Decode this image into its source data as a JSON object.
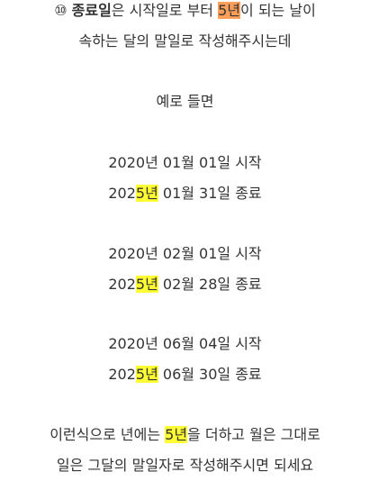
{
  "intro": {
    "marker": "⑩",
    "term": "종료일",
    "text1": "은 시작일로 부터 ",
    "highlight": "5년",
    "text2": "이 되는 날이",
    "line2": "속하는 달의 말일로 작성해주시는데"
  },
  "example_heading": "예로 들면",
  "examples": [
    {
      "start": "2020년 01월 01일 시작",
      "end_prefix": "202",
      "end_highlight": "5년",
      "end_suffix": " 01월 31일 종료"
    },
    {
      "start": "2020년 02월 01일 시작",
      "end_prefix": "202",
      "end_highlight": "5년",
      "end_suffix": " 02월 28일 종료"
    },
    {
      "start": "2020년 06월 04일 시작",
      "end_prefix": "202",
      "end_highlight": "5년",
      "end_suffix": " 06월 30일 종료"
    }
  ],
  "outro": {
    "text1": "이런식으로 년에는 ",
    "highlight": "5년",
    "text2": "을 더하고 월은 그대로",
    "line2": "일은 그달의 말일자로 작성해주시면 되세요"
  },
  "colors": {
    "orange_highlight": "#ff9f5a",
    "yellow_highlight": "#ffff33",
    "text": "#333333"
  }
}
